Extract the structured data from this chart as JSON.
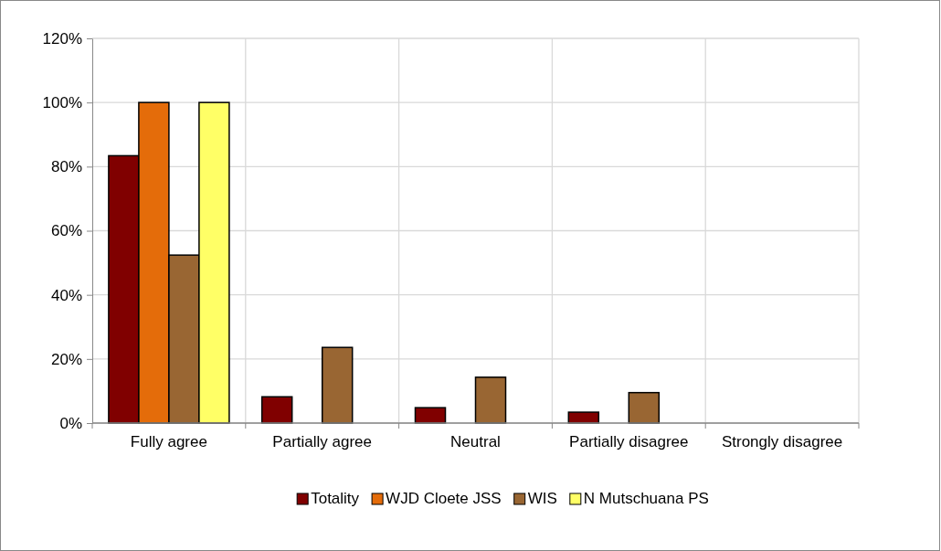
{
  "chart_data": {
    "type": "bar",
    "categories": [
      "Fully agree",
      "Partially agree",
      "Neutral",
      "Partially disagree",
      "Strongly disagree"
    ],
    "series": [
      {
        "name": "Totality",
        "color": "#800000",
        "values": [
          83.4,
          8.2,
          4.8,
          3.4,
          0
        ]
      },
      {
        "name": "WJD Cloete JSS",
        "color": "#e46c0a",
        "values": [
          100,
          0,
          0,
          0,
          0
        ]
      },
      {
        "name": "WIS",
        "color": "#996633",
        "values": [
          52.4,
          23.6,
          14.3,
          9.5,
          0
        ]
      },
      {
        "name": "N Mutschuana PS",
        "color": "#ffff66",
        "values": [
          100,
          0,
          0,
          0,
          0
        ]
      }
    ],
    "ylim": [
      0,
      120
    ],
    "yticks": [
      {
        "value": 0,
        "label": "0%"
      },
      {
        "value": 20,
        "label": "20%"
      },
      {
        "value": 40,
        "label": "40%"
      },
      {
        "value": 60,
        "label": "60%"
      },
      {
        "value": 80,
        "label": "80%"
      },
      {
        "value": 100,
        "label": "100%"
      },
      {
        "value": 120,
        "label": "120%"
      }
    ],
    "grid": true,
    "legend": "bottom"
  }
}
